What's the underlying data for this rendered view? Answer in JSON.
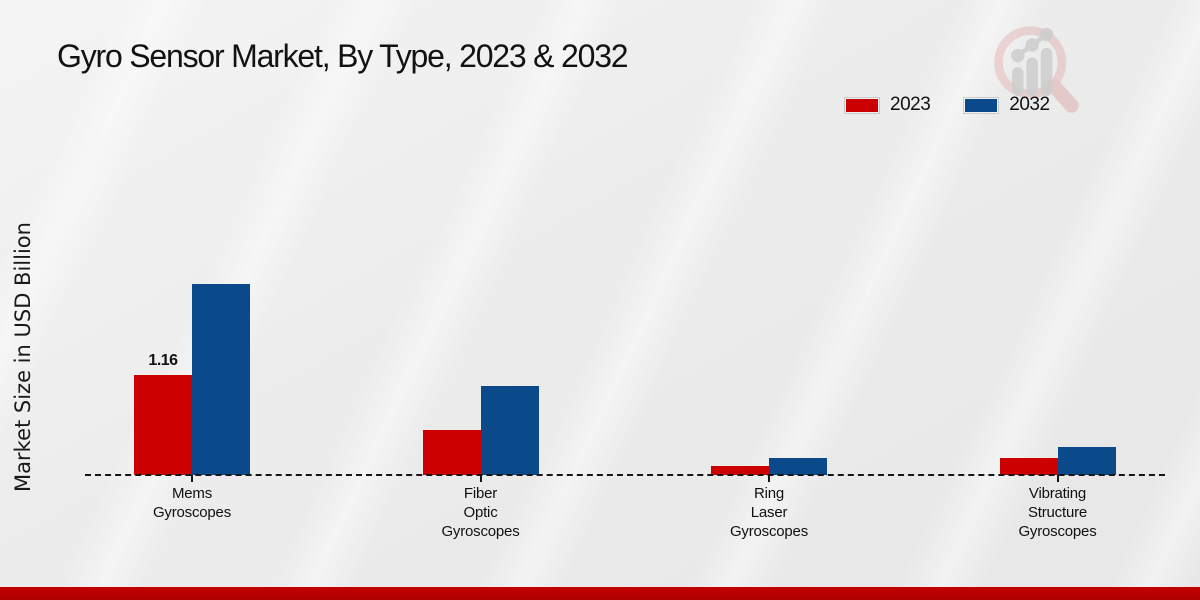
{
  "header": {
    "title": "Gyro Sensor Market, By Type, 2023 & 2032"
  },
  "watermark": {
    "icon": "magnifier-bar-chart-logo"
  },
  "legend": [
    {
      "label": "2023",
      "color": "#cc0000"
    },
    {
      "label": "2032",
      "color": "#0a4a8a"
    }
  ],
  "colors": {
    "series_2023": "#cc0000",
    "series_2032": "#0a4a8a",
    "bottom_band": "#b50000",
    "axis_line": "#161616"
  },
  "chart_data": {
    "type": "bar",
    "title": "Gyro Sensor Market, By Type, 2023 & 2032",
    "xlabel": "",
    "ylabel": "Market Size in USD Billion",
    "categories": [
      "Mems Gyroscopes",
      "Fiber Optic Gyroscopes",
      "Ring Laser Gyroscopes",
      "Vibrating Structure Gyroscopes"
    ],
    "category_label_lines": [
      [
        "Mems",
        "Gyroscopes"
      ],
      [
        "Fiber",
        "Optic",
        "Gyroscopes"
      ],
      [
        "Ring",
        "Laser",
        "Gyroscopes"
      ],
      [
        "Vibrating",
        "Structure",
        "Gyroscopes"
      ]
    ],
    "series": [
      {
        "name": "2023",
        "color": "#cc0000",
        "values": [
          1.16,
          0.52,
          0.1,
          0.2
        ]
      },
      {
        "name": "2032",
        "color": "#0a4a8a",
        "values": [
          2.22,
          1.03,
          0.2,
          0.33
        ]
      }
    ],
    "annotations": [
      {
        "text": "1.16",
        "series_index": 0,
        "category_index": 0
      }
    ],
    "ylim": [
      0,
      2.5
    ],
    "grid": false,
    "legend_position": "top-right",
    "baseline_style": "dashed"
  }
}
